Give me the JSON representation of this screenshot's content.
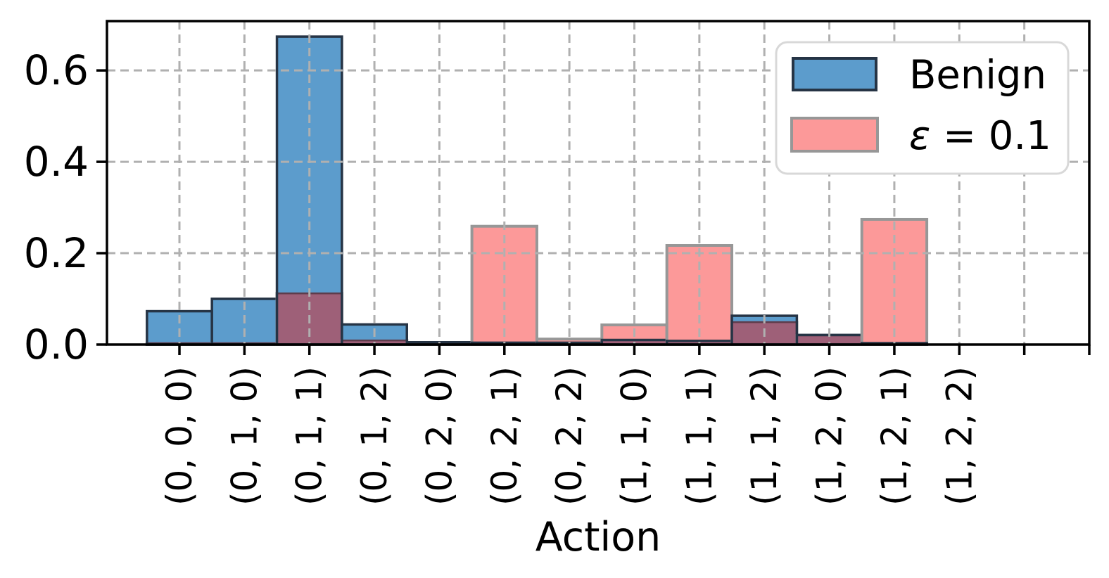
{
  "figure": {
    "xlabel": "Action",
    "legend_items": [
      {
        "label": "Benign"
      },
      {
        "label": "ε = 0.1"
      }
    ]
  },
  "chart_data": {
    "type": "bar",
    "subtype": "overlaid-histogram",
    "title": "",
    "xlabel": "Action",
    "ylabel": "",
    "categories": [
      "(0, 0, 0)",
      "(0, 1, 0)",
      "(0, 1, 1)",
      "(0, 1, 2)",
      "(0, 2, 0)",
      "(0, 2, 1)",
      "(0, 2, 2)",
      "(1, 1, 0)",
      "(1, 1, 1)",
      "(1, 1, 2)",
      "(1, 2, 0)",
      "(1, 2, 1)",
      "(1, 2, 2)"
    ],
    "series": [
      {
        "name": "Benign",
        "values": [
          0.073,
          0.1,
          0.674,
          0.044,
          0.005,
          0.004,
          0.004,
          0.01,
          0.008,
          0.063,
          0.021,
          0.003,
          0.0
        ],
        "fill": "#5C9CCC",
        "edge": "#263445"
      },
      {
        "name": "ε = 0.1",
        "values": [
          0.003,
          0.003,
          0.112,
          0.009,
          0.004,
          0.259,
          0.012,
          0.043,
          0.217,
          0.049,
          0.02,
          0.274,
          0.0
        ],
        "fill": "#FC9999",
        "edge": "#979797"
      }
    ],
    "overlap_fill": "#9E6078",
    "overlap_edge": "#5E3C4B",
    "yticks": [
      "0.0",
      "0.2",
      "0.4",
      "0.6"
    ],
    "ytick_values": [
      0.0,
      0.2,
      0.4,
      0.6
    ],
    "ylim": [
      0.0,
      0.708
    ],
    "n_xticks": 15,
    "grid": true,
    "grid_color": "#B0B0B0",
    "frame_color": "#000000",
    "legend_position": "upper right",
    "legend_border": "#D8D8D8"
  }
}
